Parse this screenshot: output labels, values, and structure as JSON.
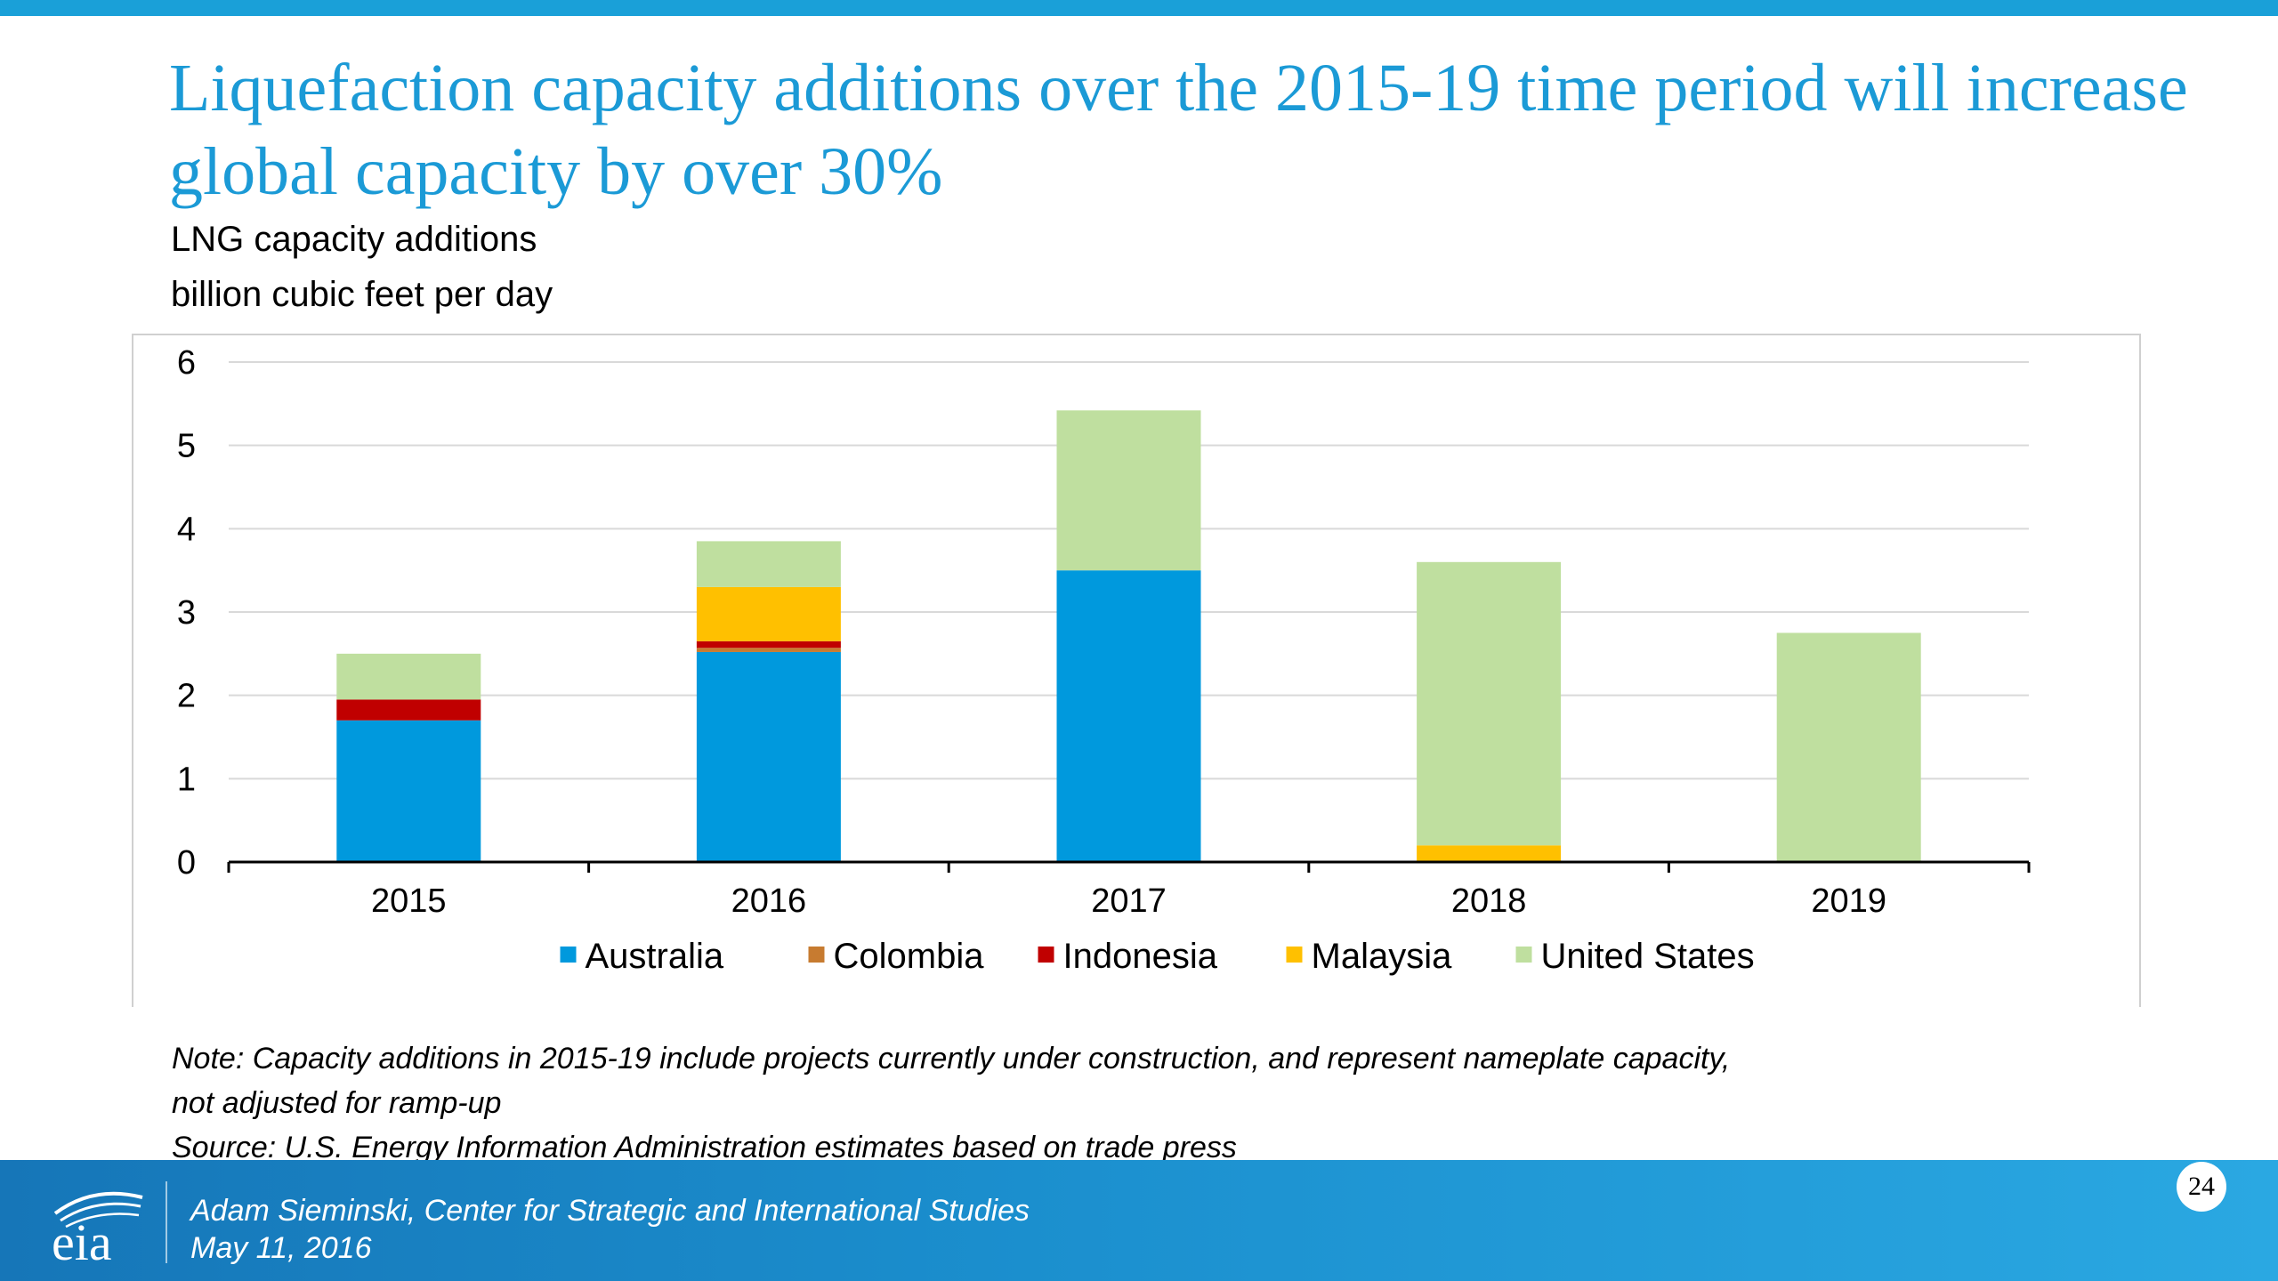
{
  "slide": {
    "title": "Liquefaction capacity additions over the 2015-19 time period will increase global capacity by over 30%",
    "note_line1": "Note: Capacity additions in 2015-19 include projects currently under construction, and represent nameplate capacity,",
    "note_line2": "not adjusted for ramp-up",
    "source": "Source: U.S. Energy Information Administration estimates based on trade press",
    "footer_line1": "Adam Sieminski, Center for Strategic and International Studies",
    "footer_line2": "May 11, 2016",
    "page_number": "24",
    "logo_text": "eia",
    "accent_color": "#1b9ad6"
  },
  "chart_data": {
    "type": "bar",
    "stacked": true,
    "title": "LNG capacity additions",
    "ylabel": "billion cubic feet per day",
    "categories": [
      "2015",
      "2016",
      "2017",
      "2018",
      "2019"
    ],
    "ylim": [
      0,
      6
    ],
    "yticks": [
      0,
      1,
      2,
      3,
      4,
      5,
      6
    ],
    "grid": true,
    "legend_position": "bottom",
    "series": [
      {
        "name": "Australia",
        "color": "#0099dd",
        "values": [
          1.7,
          2.52,
          3.5,
          0,
          0
        ]
      },
      {
        "name": "Colombia",
        "color": "#c77b30",
        "values": [
          0,
          0.05,
          0,
          0,
          0
        ]
      },
      {
        "name": "Indonesia",
        "color": "#c00000",
        "values": [
          0.25,
          0.08,
          0,
          0,
          0
        ]
      },
      {
        "name": "Malaysia",
        "color": "#ffc000",
        "values": [
          0,
          0.65,
          0,
          0.2,
          0
        ]
      },
      {
        "name": "United States",
        "color": "#bfdf9f",
        "values": [
          0.55,
          0.55,
          1.92,
          3.4,
          2.75
        ]
      }
    ]
  }
}
